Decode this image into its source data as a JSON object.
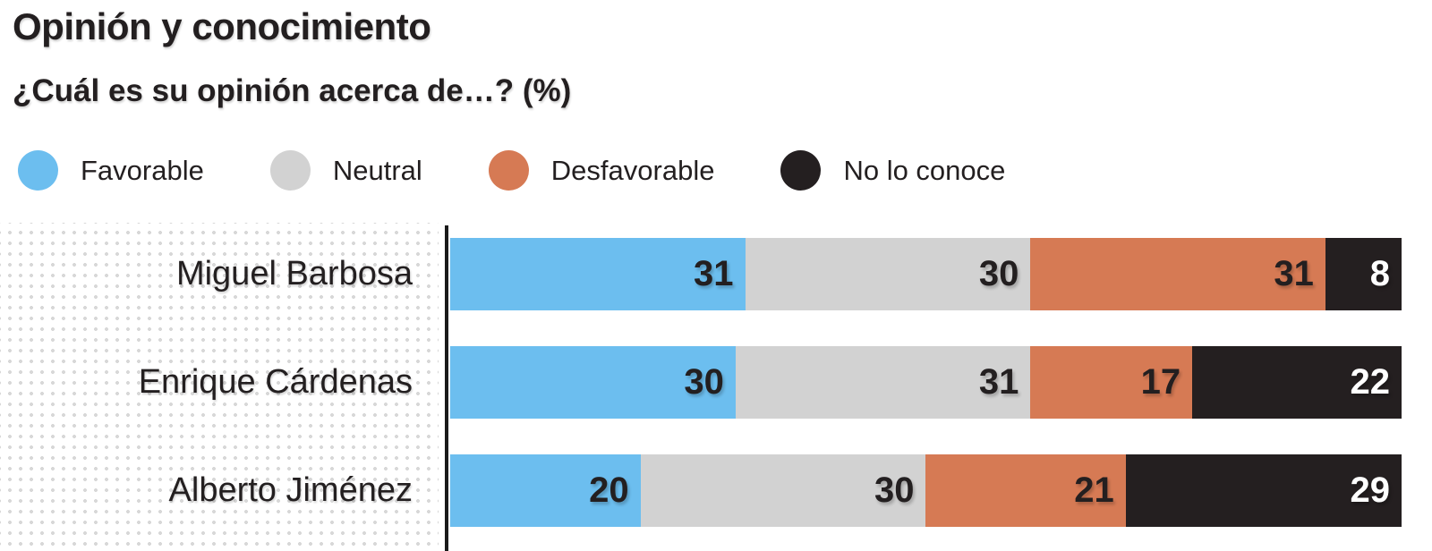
{
  "header": {
    "title": "Opinión y conocimiento",
    "subtitle": "¿Cuál es su opinión acerca de…? (%)"
  },
  "legend": [
    {
      "label": "Favorable",
      "color": "#6cbeef"
    },
    {
      "label": "Neutral",
      "color": "#d2d2d2"
    },
    {
      "label": "Desfavorable",
      "color": "#d67a54"
    },
    {
      "label": "No lo conoce",
      "color": "#241f20"
    }
  ],
  "chart_data": {
    "type": "bar",
    "orientation": "horizontal",
    "stacked": true,
    "unit": "%",
    "title": "Opinión y conocimiento",
    "subtitle": "¿Cuál es su opinión acerca de…? (%)",
    "categories": [
      "Miguel Barbosa",
      "Enrique Cárdenas",
      "Alberto Jiménez"
    ],
    "series": [
      {
        "name": "Favorable",
        "color": "#6cbeef",
        "value_label_color": "#231f20",
        "values": [
          31,
          30,
          20
        ]
      },
      {
        "name": "Neutral",
        "color": "#d2d2d2",
        "value_label_color": "#231f20",
        "values": [
          30,
          31,
          30
        ]
      },
      {
        "name": "Desfavorable",
        "color": "#d67a54",
        "value_label_color": "#231f20",
        "values": [
          31,
          17,
          21
        ]
      },
      {
        "name": "No lo conoce",
        "color": "#241f20",
        "value_label_color": "#ffffff",
        "values": [
          8,
          22,
          29
        ]
      }
    ],
    "xlim": [
      0,
      100
    ],
    "value_labels": "inside-right",
    "legend_position": "top",
    "grid": false
  },
  "colors": {
    "text": "#231f20",
    "axis_line": "#1a1a1a",
    "label_area_dots": "#d8d8d8",
    "background": "#ffffff"
  }
}
